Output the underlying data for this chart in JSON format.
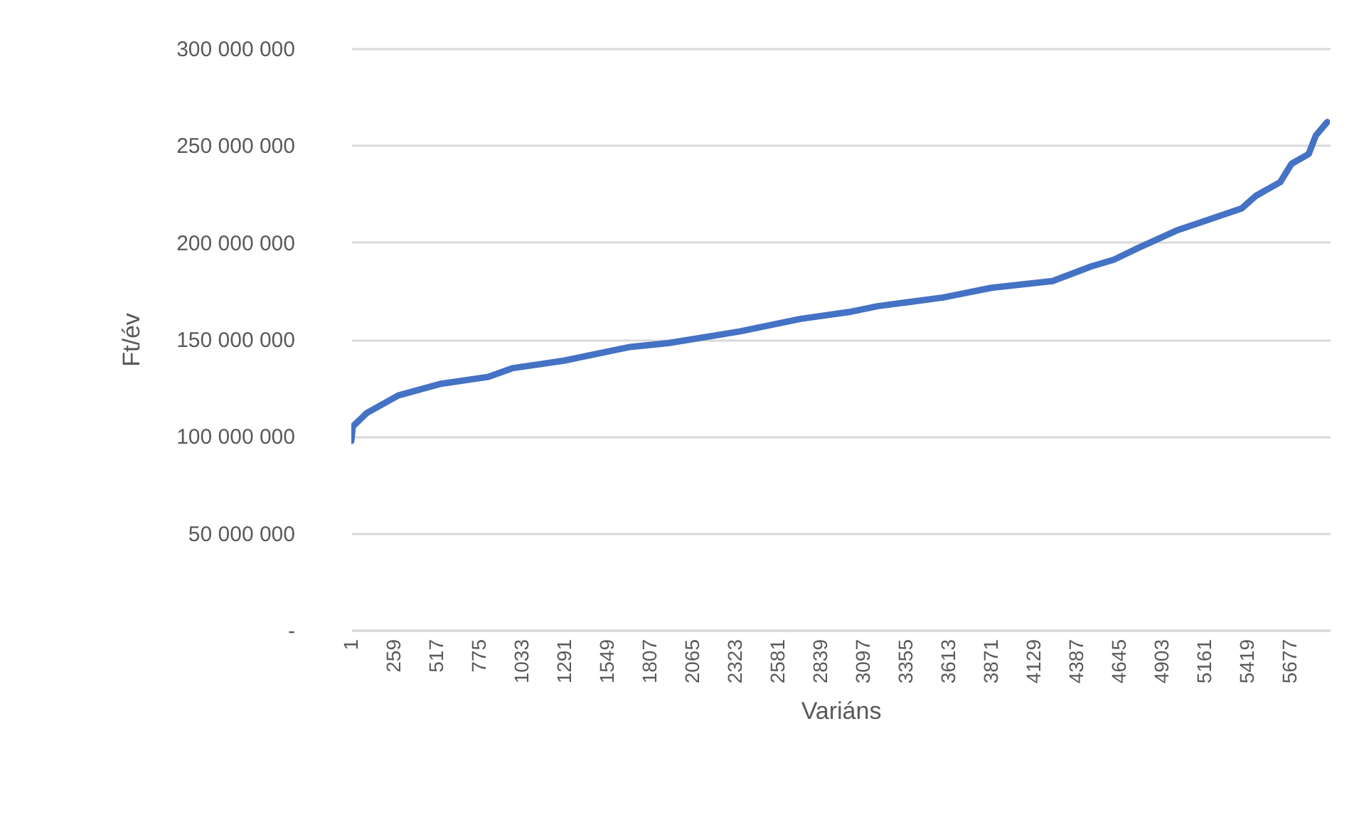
{
  "chart_data": {
    "type": "line",
    "xlabel": "Variáns",
    "ylabel": "Ft/év",
    "x": [
      1,
      10,
      96,
      285,
      543,
      826,
      973,
      1291,
      1686,
      1918,
      2348,
      2718,
      3010,
      3182,
      3578,
      3870,
      4240,
      4472,
      4610,
      4756,
      4988,
      5160,
      5384,
      5470,
      5616,
      5685,
      5788,
      5831,
      5900
    ],
    "series": [
      {
        "color": "#4472c4",
        "values": [
          97500000,
          105000000,
          112000000,
          121000000,
          127000000,
          130500000,
          135000000,
          139000000,
          146000000,
          148000000,
          154000000,
          160500000,
          164000000,
          167000000,
          171500000,
          176500000,
          180000000,
          187500000,
          191000000,
          197000000,
          206000000,
          211000000,
          217500000,
          224000000,
          231000000,
          240500000,
          245500000,
          255000000,
          262000000
        ]
      }
    ],
    "xlim": [
      1,
      5916
    ],
    "xticks": [
      1,
      259,
      517,
      775,
      1033,
      1291,
      1549,
      1807,
      2065,
      2323,
      2581,
      2839,
      3097,
      3355,
      3613,
      3871,
      4129,
      4387,
      4645,
      4903,
      5161,
      5419,
      5677
    ],
    "ylim": [
      0,
      300000000
    ],
    "yticks": [
      {
        "value": 0,
        "label": "-"
      },
      {
        "value": 50000000,
        "label": "50 000 000"
      },
      {
        "value": 100000000,
        "label": "100 000 000"
      },
      {
        "value": 150000000,
        "label": "150 000 000"
      },
      {
        "value": 200000000,
        "label": "200 000 000"
      },
      {
        "value": 250000000,
        "label": "250 000 000"
      },
      {
        "value": 300000000,
        "label": "300 000 000"
      }
    ],
    "grid": "y",
    "marker": "none",
    "line_style": "solid"
  }
}
